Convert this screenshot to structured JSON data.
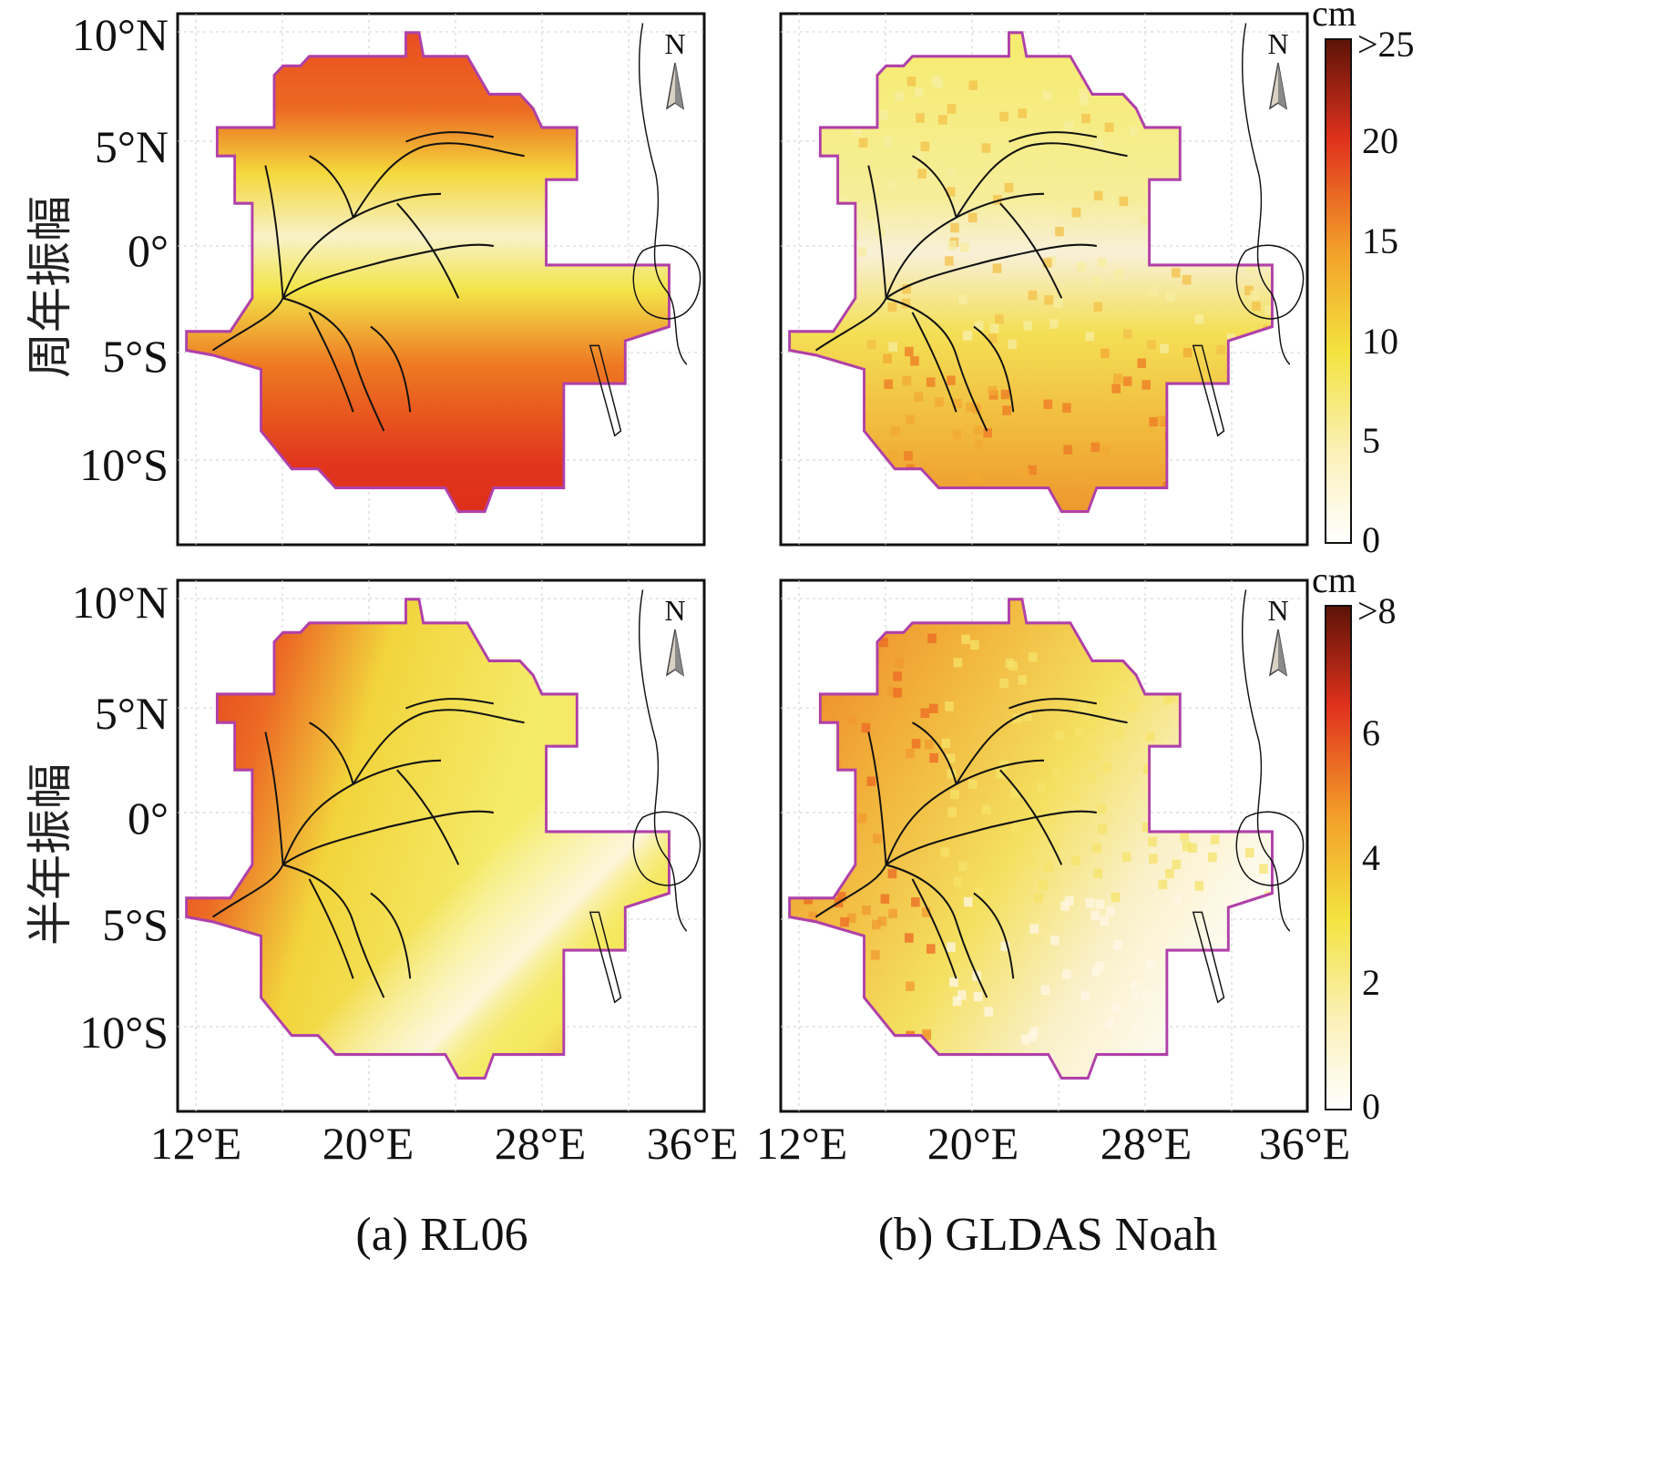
{
  "figure": {
    "row_labels": [
      "周年振幅",
      "半年振幅"
    ],
    "captions": [
      "(a) RL06",
      "(b) GLDAS Noah"
    ],
    "lat_labels": [
      "10°N",
      "5°N",
      "0°",
      "5°S",
      "10°S"
    ],
    "lon_labels": [
      "12°E",
      "20°E",
      "28°E",
      "36°E"
    ],
    "north_label": "N"
  },
  "colorbars": [
    {
      "unit": "cm",
      "ticks": [
        "0",
        "5",
        "10",
        "15",
        "20",
        ">25"
      ]
    },
    {
      "unit": "cm",
      "ticks": [
        "0",
        "2",
        "4",
        "6",
        ">8"
      ]
    }
  ],
  "colors": {
    "basin_outline": "#b040a8",
    "ramp": [
      "#ffffff",
      "#f5e84a",
      "#f29a2a",
      "#e0301e",
      "#5a1208"
    ]
  }
}
